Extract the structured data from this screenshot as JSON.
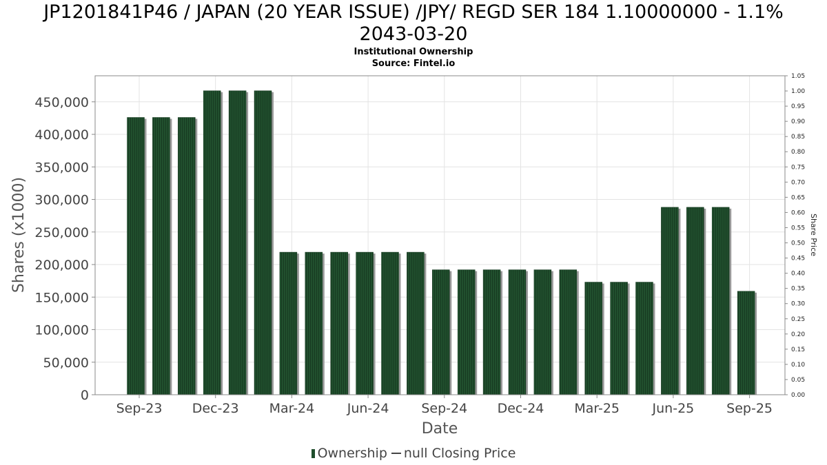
{
  "chart_data": {
    "type": "bar",
    "title_line1": "JP1201841P46 / JAPAN (20 YEAR ISSUE) /JPY/ REGD SER 184 1.10000000 - 1.1%",
    "title_line2": "2043-03-20",
    "subtitle": "Institutional Ownership",
    "source": "Source: Fintel.io",
    "xlabel": "Date",
    "ylabel": "Shares (x1000)",
    "y2label": "Share Price",
    "ylim": [
      0,
      490000
    ],
    "y2lim": [
      0,
      1.05
    ],
    "y_ticks": [
      0,
      50000,
      100000,
      150000,
      200000,
      250000,
      300000,
      350000,
      400000,
      450000
    ],
    "y_tick_labels": [
      "0",
      "50,000",
      "100,000",
      "150,000",
      "200,000",
      "250,000",
      "300,000",
      "350,000",
      "400,000",
      "450,000"
    ],
    "y2_tick_labels": [
      "0.00",
      "0.05",
      "0.10",
      "0.15",
      "0.20",
      "0.25",
      "0.30",
      "0.35",
      "0.40",
      "0.45",
      "0.50",
      "0.55",
      "0.60",
      "0.65",
      "0.70",
      "0.75",
      "0.80",
      "0.85",
      "0.90",
      "0.95",
      "1.00",
      "1.05"
    ],
    "x_tick_labels": [
      "Sep-23",
      "Dec-23",
      "Mar-24",
      "Jun-24",
      "Sep-24",
      "Dec-24",
      "Mar-25",
      "Jun-25",
      "Sep-25"
    ],
    "grid": true,
    "legend_position": "bottom",
    "series": [
      {
        "name": "Ownership",
        "color": "#1e4d2b",
        "values": [
          426000,
          426000,
          426000,
          467000,
          467000,
          467000,
          219000,
          219000,
          219000,
          219000,
          219000,
          219000,
          192000,
          192000,
          192000,
          192000,
          192000,
          192000,
          173000,
          173000,
          173000,
          288000,
          288000,
          288000,
          159000
        ]
      }
    ],
    "legend": {
      "ownership_label": "Ownership",
      "price_label": "null Closing Price"
    }
  }
}
